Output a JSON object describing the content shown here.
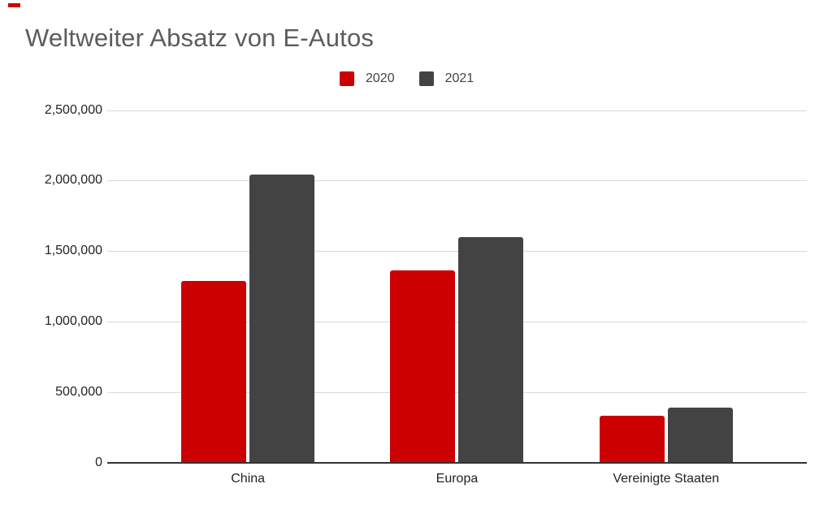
{
  "page": {
    "background_color": "#ffffff",
    "corner_marker_color": "#cc0000"
  },
  "header": {
    "title": "Weltweiter Absatz von E-Autos",
    "title_color": "#5c5c5c"
  },
  "legend": {
    "position": "top",
    "items": [
      {
        "label": "2020",
        "color": "#cc0000"
      },
      {
        "label": "2021",
        "color": "#434343"
      }
    ]
  },
  "chart_data": {
    "type": "bar",
    "title": "Weltweiter Absatz von E-Autos",
    "categories": [
      "China",
      "Europa",
      "Vereinigte Staaten"
    ],
    "series": [
      {
        "name": "2020",
        "color": "#cc0000",
        "values": [
          1290000,
          1360000,
          330000
        ]
      },
      {
        "name": "2021",
        "color": "#434343",
        "values": [
          2040000,
          1600000,
          390000
        ]
      }
    ],
    "xlabel": "",
    "ylabel": "",
    "ylim": [
      0,
      2500000
    ],
    "ytick_interval": 500000,
    "yticks": [
      {
        "value": 0,
        "label": "0"
      },
      {
        "value": 500000,
        "label": "500,000"
      },
      {
        "value": 1000000,
        "label": "1,000,000"
      },
      {
        "value": 1500000,
        "label": "1,500,000"
      },
      {
        "value": 2000000,
        "label": "2,000,000"
      },
      {
        "value": 2500000,
        "label": "2,500,000"
      }
    ],
    "grid": true,
    "gridline_color": "#d9d9d9",
    "axis_line_color": "#333333",
    "legend_position": "top"
  }
}
